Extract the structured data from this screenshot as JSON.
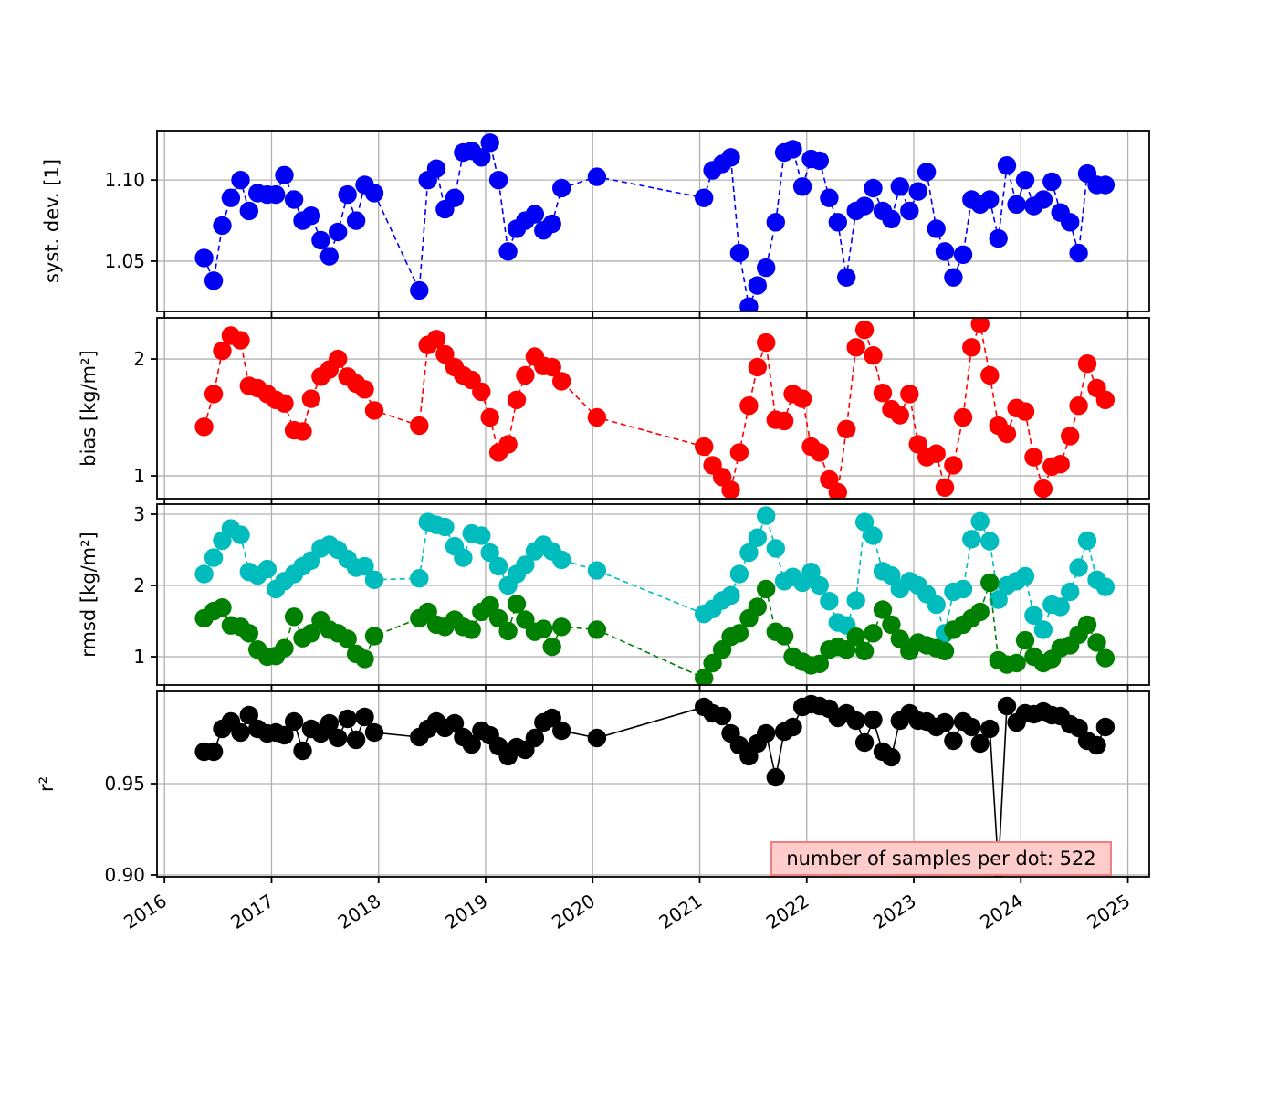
{
  "chart_data": {
    "type": "scatter",
    "title": "",
    "description": "Four stacked time-series panels of monthly validation statistics (dots connected by dashed/solid lines)",
    "grid": true,
    "grid_color": "#b0b0b0",
    "background": "#ffffff",
    "x_axis": {
      "label": "",
      "ticks": [
        2016,
        2017,
        2018,
        2019,
        2020,
        2021,
        2022,
        2023,
        2024,
        2025
      ],
      "tick_labels": [
        "2016",
        "2017",
        "2018",
        "2019",
        "2020",
        "2021",
        "2022",
        "2023",
        "2024",
        "2025"
      ],
      "range": [
        2015.93,
        2025.2
      ]
    },
    "x": [
      2016.37,
      2016.46,
      2016.54,
      2016.62,
      2016.71,
      2016.79,
      2016.87,
      2016.96,
      2017.04,
      2017.12,
      2017.21,
      2017.29,
      2017.37,
      2017.46,
      2017.54,
      2017.62,
      2017.71,
      2017.79,
      2017.87,
      2017.96,
      2018.38,
      2018.46,
      2018.54,
      2018.62,
      2018.71,
      2018.79,
      2018.87,
      2018.96,
      2019.04,
      2019.12,
      2019.21,
      2019.29,
      2019.37,
      2019.46,
      2019.54,
      2019.62,
      2019.71,
      2020.04,
      2021.04,
      2021.12,
      2021.21,
      2021.29,
      2021.37,
      2021.46,
      2021.54,
      2021.62,
      2021.71,
      2021.79,
      2021.87,
      2021.96,
      2022.04,
      2022.12,
      2022.21,
      2022.29,
      2022.37,
      2022.46,
      2022.54,
      2022.62,
      2022.71,
      2022.79,
      2022.87,
      2022.96,
      2023.04,
      2023.12,
      2023.21,
      2023.29,
      2023.37,
      2023.46,
      2023.54,
      2023.62,
      2023.71,
      2023.79,
      2023.87,
      2023.96,
      2024.04,
      2024.12,
      2024.21,
      2024.29,
      2024.37,
      2024.46,
      2024.54,
      2024.62,
      2024.71,
      2024.79
    ],
    "panels": [
      {
        "ylabel": "syst. dev. [1]",
        "yticks": [
          1.05,
          1.1
        ],
        "ytick_labels": [
          "1.05",
          "1.10"
        ],
        "ylim": [
          1.019,
          1.1305
        ],
        "series": [
          {
            "name": "syst-dev",
            "color": "#0000f5",
            "linestyle": "dashed",
            "values": [
              1.052,
              1.038,
              1.072,
              1.089,
              1.1,
              1.081,
              1.092,
              1.091,
              1.091,
              1.103,
              1.088,
              1.075,
              1.078,
              1.063,
              1.053,
              1.068,
              1.091,
              1.075,
              1.097,
              1.092,
              1.032,
              1.1,
              1.107,
              1.082,
              1.089,
              1.117,
              1.118,
              1.114,
              1.123,
              1.1,
              1.056,
              1.07,
              1.075,
              1.079,
              1.069,
              1.073,
              1.095,
              1.102,
              1.089,
              1.106,
              1.11,
              1.114,
              1.055,
              1.022,
              1.035,
              1.046,
              1.074,
              1.117,
              1.119,
              1.096,
              1.113,
              1.112,
              1.089,
              1.074,
              1.04,
              1.081,
              1.084,
              1.095,
              1.081,
              1.076,
              1.096,
              1.081,
              1.093,
              1.105,
              1.07,
              1.056,
              1.04,
              1.054,
              1.088,
              1.085,
              1.088,
              1.064,
              1.109,
              1.085,
              1.1,
              1.084,
              1.088,
              1.099,
              1.08,
              1.074,
              1.055,
              1.104,
              1.097,
              1.097
            ]
          }
        ]
      },
      {
        "ylabel": "bias [kg/m²]",
        "yticks": [
          1,
          2
        ],
        "ytick_labels": [
          "1",
          "2"
        ],
        "ylim": [
          0.805,
          2.352
        ],
        "series": [
          {
            "name": "bias",
            "color": "#ff0000",
            "linestyle": "dashed",
            "values": [
              1.42,
              1.7,
              2.07,
              2.2,
              2.16,
              1.77,
              1.75,
              1.7,
              1.65,
              1.62,
              1.39,
              1.38,
              1.66,
              1.85,
              1.91,
              2.0,
              1.85,
              1.79,
              1.74,
              1.56,
              1.43,
              2.12,
              2.17,
              2.04,
              1.93,
              1.86,
              1.82,
              1.72,
              1.5,
              1.2,
              1.27,
              1.65,
              1.86,
              2.02,
              1.94,
              1.93,
              1.81,
              1.5,
              1.25,
              1.09,
              0.99,
              0.88,
              1.2,
              1.6,
              1.93,
              2.14,
              1.48,
              1.47,
              1.7,
              1.66,
              1.25,
              1.2,
              0.97,
              0.86,
              1.4,
              2.1,
              2.25,
              2.03,
              1.71,
              1.57,
              1.52,
              1.7,
              1.27,
              1.16,
              1.19,
              0.9,
              1.09,
              1.5,
              2.1,
              2.3,
              1.86,
              1.43,
              1.36,
              1.58,
              1.55,
              1.16,
              0.89,
              1.08,
              1.1,
              1.34,
              1.6,
              1.96,
              1.75,
              1.65
            ]
          }
        ]
      },
      {
        "ylabel": "rmsd [kg/m²]",
        "yticks": [
          1,
          2,
          3
        ],
        "ytick_labels": [
          "1",
          "2",
          "3"
        ],
        "ylim": [
          0.603,
          3.141
        ],
        "series": [
          {
            "name": "rmsd-cyan",
            "color": "#00bcbc",
            "linestyle": "dashed",
            "values": [
              2.16,
              2.39,
              2.63,
              2.8,
              2.71,
              2.19,
              2.14,
              2.23,
              1.95,
              2.06,
              2.16,
              2.27,
              2.35,
              2.52,
              2.57,
              2.5,
              2.37,
              2.25,
              2.27,
              2.08,
              2.1,
              2.89,
              2.85,
              2.82,
              2.55,
              2.39,
              2.73,
              2.7,
              2.46,
              2.27,
              2.0,
              2.16,
              2.29,
              2.48,
              2.57,
              2.48,
              2.36,
              2.21,
              1.6,
              1.67,
              1.79,
              1.86,
              2.16,
              2.46,
              2.67,
              2.98,
              2.52,
              2.06,
              2.12,
              2.04,
              2.19,
              2.0,
              1.78,
              1.48,
              1.44,
              1.79,
              2.89,
              2.7,
              2.2,
              2.14,
              1.95,
              2.06,
              2.0,
              1.88,
              1.73,
              1.33,
              1.91,
              1.95,
              2.65,
              2.9,
              2.62,
              1.8,
              2.0,
              2.06,
              2.13,
              1.58,
              1.38,
              1.73,
              1.7,
              1.91,
              2.25,
              2.63,
              2.08,
              1.98
            ]
          },
          {
            "name": "rmsd-green",
            "color": "#008000",
            "linestyle": "dashed",
            "values": [
              1.54,
              1.64,
              1.69,
              1.44,
              1.42,
              1.33,
              1.1,
              1.0,
              1.01,
              1.12,
              1.56,
              1.26,
              1.33,
              1.51,
              1.38,
              1.33,
              1.25,
              1.04,
              0.97,
              1.29,
              1.54,
              1.63,
              1.45,
              1.42,
              1.52,
              1.42,
              1.38,
              1.63,
              1.72,
              1.54,
              1.36,
              1.74,
              1.52,
              1.35,
              1.39,
              1.14,
              1.42,
              1.38,
              0.7,
              0.91,
              1.1,
              1.28,
              1.33,
              1.54,
              1.7,
              1.95,
              1.35,
              1.29,
              1.0,
              0.93,
              0.88,
              0.9,
              1.1,
              1.14,
              1.1,
              1.28,
              1.08,
              1.33,
              1.66,
              1.45,
              1.25,
              1.08,
              1.2,
              1.16,
              1.12,
              1.08,
              1.38,
              1.45,
              1.54,
              1.63,
              2.04,
              0.95,
              0.89,
              0.91,
              1.23,
              1.0,
              0.91,
              0.97,
              1.12,
              1.16,
              1.31,
              1.45,
              1.2,
              0.98
            ]
          }
        ]
      },
      {
        "ylabel": "r²",
        "yticks": [
          0.9,
          0.95
        ],
        "ytick_labels": [
          "0.90",
          "0.95"
        ],
        "ylim": [
          0.899,
          1.0005
        ],
        "series": [
          {
            "name": "r2",
            "color": "#000000",
            "linestyle": "solid",
            "values": [
              0.9675,
              0.9675,
              0.98,
              0.984,
              0.978,
              0.9875,
              0.98,
              0.9775,
              0.978,
              0.9765,
              0.984,
              0.968,
              0.98,
              0.9775,
              0.983,
              0.975,
              0.9855,
              0.974,
              0.9865,
              0.978,
              0.9755,
              0.98,
              0.984,
              0.9805,
              0.983,
              0.9755,
              0.9715,
              0.979,
              0.9765,
              0.9705,
              0.965,
              0.97,
              0.9685,
              0.975,
              0.9835,
              0.986,
              0.979,
              0.975,
              0.992,
              0.9885,
              0.987,
              0.9775,
              0.971,
              0.965,
              0.972,
              0.9775,
              0.9535,
              0.9785,
              0.981,
              0.992,
              0.9935,
              0.9925,
              0.991,
              0.986,
              0.9885,
              0.9845,
              0.9725,
              0.985,
              0.9675,
              0.9645,
              0.9845,
              0.9885,
              0.9845,
              0.984,
              0.981,
              0.9835,
              0.9735,
              0.984,
              0.981,
              0.972,
              0.98,
              0.904,
              0.9925,
              0.9835,
              0.9885,
              0.988,
              0.9895,
              0.9875,
              0.987,
              0.9825,
              0.9805,
              0.9735,
              0.971,
              0.981
            ]
          }
        ]
      }
    ],
    "annotation": {
      "text": "number of samples per dot: 522",
      "bg_color": "#ffcccc",
      "border_color": "#f08080"
    }
  }
}
